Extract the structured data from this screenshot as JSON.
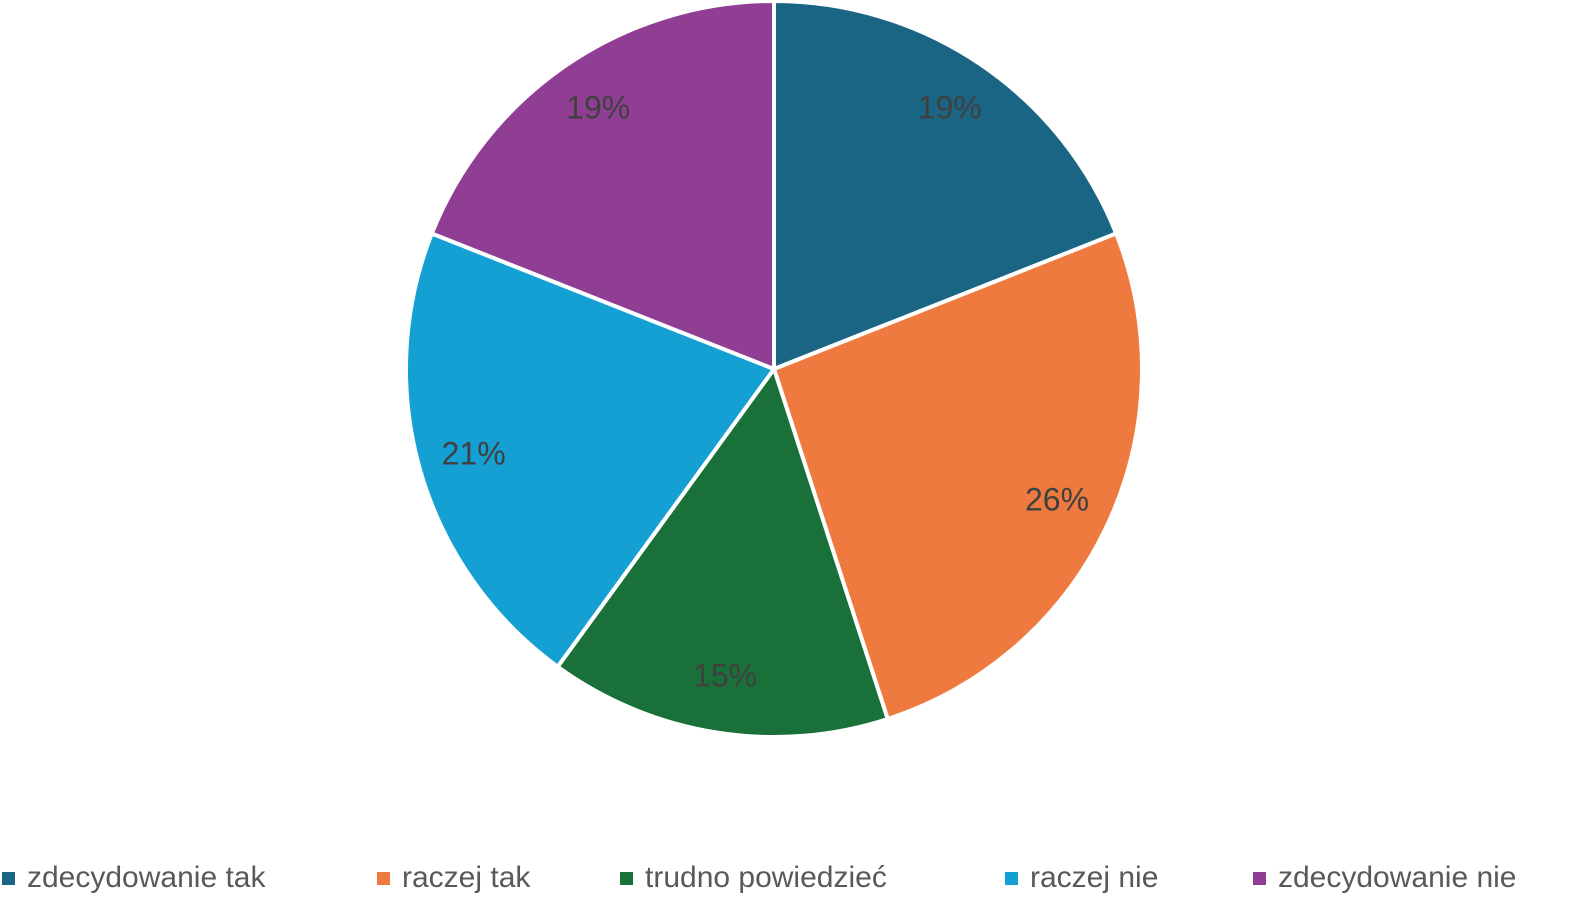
{
  "chart_data": {
    "type": "pie",
    "categories": [
      "zdecydowanie tak",
      "raczej tak",
      "trudno powiedzieć",
      "raczej nie",
      "zdecydowanie nie"
    ],
    "values": [
      19,
      26,
      15,
      21,
      19
    ],
    "value_labels": [
      "19%",
      "26%",
      "15%",
      "21%",
      "19%"
    ],
    "colors": [
      "#1b6584",
      "#ee7a3f",
      "#1a7039",
      "#15a0d4",
      "#8f3e93"
    ],
    "legend": "bottom"
  }
}
